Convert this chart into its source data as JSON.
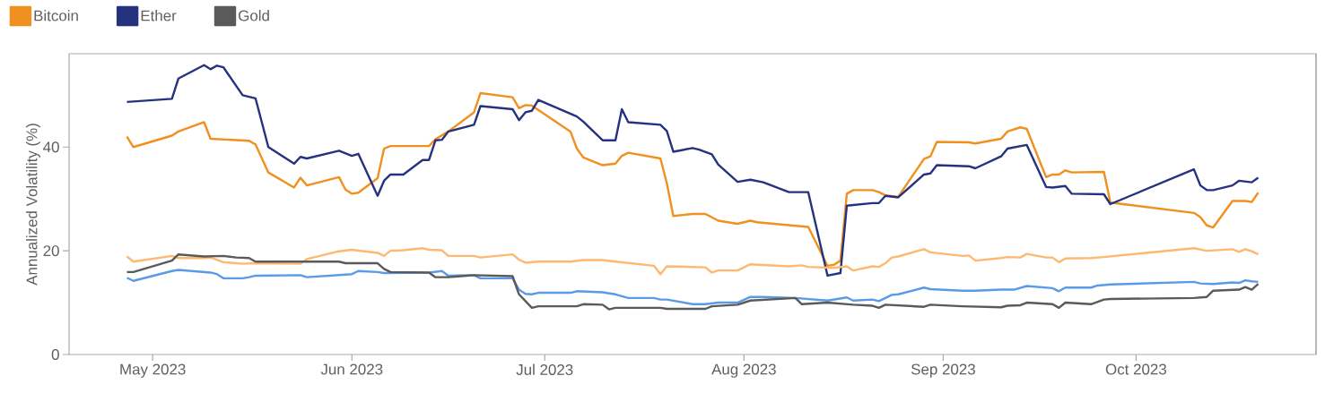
{
  "chart_data": {
    "type": "line",
    "ylabel": "Annualized Volatility (%)",
    "xlim": [
      "2023-04-18",
      "2023-10-29"
    ],
    "ylim": [
      0,
      58
    ],
    "xticks": [
      {
        "value": "2023-05-01",
        "label": "May 2023"
      },
      {
        "value": "2023-06-01",
        "label": "Jun 2023"
      },
      {
        "value": "2023-07-01",
        "label": "Jul 2023"
      },
      {
        "value": "2023-08-01",
        "label": "Aug 2023"
      },
      {
        "value": "2023-09-01",
        "label": "Sep 2023"
      },
      {
        "value": "2023-10-01",
        "label": "Oct 2023"
      }
    ],
    "yticks": [
      0,
      20,
      40
    ],
    "grid": false,
    "legend": "top left",
    "marker": "none",
    "line_style": "solid",
    "series": [
      {
        "name": "Bitcoin",
        "color": "#f0901e",
        "x": [
          "2023-04-27",
          "2023-04-28",
          "2023-05-04",
          "2023-05-05",
          "2023-05-09",
          "2023-05-10",
          "2023-05-16",
          "2023-05-17",
          "2023-05-19",
          "2023-05-23",
          "2023-05-24",
          "2023-05-25",
          "2023-05-30",
          "2023-05-31",
          "2023-06-01",
          "2023-06-02",
          "2023-06-05",
          "2023-06-06",
          "2023-06-07",
          "2023-06-13",
          "2023-06-14",
          "2023-06-16",
          "2023-06-20",
          "2023-06-21",
          "2023-06-26",
          "2023-06-27",
          "2023-06-28",
          "2023-06-29",
          "2023-07-05",
          "2023-07-06",
          "2023-07-07",
          "2023-07-10",
          "2023-07-12",
          "2023-07-13",
          "2023-07-14",
          "2023-07-19",
          "2023-07-20",
          "2023-07-21",
          "2023-07-24",
          "2023-07-26",
          "2023-07-28",
          "2023-07-31",
          "2023-08-02",
          "2023-08-03",
          "2023-08-11",
          "2023-08-14",
          "2023-08-15",
          "2023-08-16",
          "2023-08-17",
          "2023-08-18",
          "2023-08-21",
          "2023-08-22",
          "2023-08-23",
          "2023-08-25",
          "2023-08-29",
          "2023-08-30",
          "2023-08-31",
          "2023-09-05",
          "2023-09-06",
          "2023-09-10",
          "2023-09-11",
          "2023-09-13",
          "2023-09-14",
          "2023-09-17",
          "2023-09-18",
          "2023-09-19",
          "2023-09-20",
          "2023-09-21",
          "2023-09-26",
          "2023-09-27",
          "2023-10-10",
          "2023-10-11",
          "2023-10-12",
          "2023-10-13",
          "2023-10-16",
          "2023-10-18",
          "2023-10-19",
          "2023-10-20"
        ],
        "values": [
          42.0,
          40.0,
          42.2,
          43.0,
          44.8,
          41.6,
          41.2,
          40.5,
          35.1,
          32.2,
          34.1,
          32.6,
          34.2,
          31.8,
          31.0,
          31.2,
          34.0,
          39.7,
          40.2,
          40.2,
          41.5,
          43.0,
          46.7,
          50.4,
          49.6,
          47.5,
          48.1,
          48.0,
          43.0,
          39.7,
          38.0,
          36.5,
          36.8,
          38.3,
          38.9,
          37.8,
          33.0,
          26.7,
          27.1,
          27.1,
          25.8,
          25.2,
          25.8,
          25.5,
          24.6,
          17.1,
          17.3,
          18.1,
          31.0,
          31.7,
          31.7,
          31.3,
          30.7,
          30.4,
          37.7,
          38.2,
          41.0,
          40.9,
          40.7,
          41.6,
          43.0,
          43.8,
          43.5,
          34.2,
          34.7,
          34.7,
          35.5,
          35.1,
          35.2,
          29.3,
          27.3,
          26.5,
          24.9,
          24.5,
          29.6,
          29.6,
          29.4,
          31.2
        ]
      },
      {
        "name": "Ether",
        "color": "#25337f",
        "x": [
          "2023-04-27",
          "2023-05-04",
          "2023-05-05",
          "2023-05-09",
          "2023-05-10",
          "2023-05-11",
          "2023-05-12",
          "2023-05-15",
          "2023-05-17",
          "2023-05-19",
          "2023-05-23",
          "2023-05-24",
          "2023-05-25",
          "2023-05-30",
          "2023-06-01",
          "2023-06-02",
          "2023-06-05",
          "2023-06-06",
          "2023-06-07",
          "2023-06-09",
          "2023-06-12",
          "2023-06-13",
          "2023-06-14",
          "2023-06-15",
          "2023-06-16",
          "2023-06-20",
          "2023-06-21",
          "2023-06-26",
          "2023-06-27",
          "2023-06-28",
          "2023-06-29",
          "2023-06-30",
          "2023-07-06",
          "2023-07-07",
          "2023-07-10",
          "2023-07-12",
          "2023-07-13",
          "2023-07-14",
          "2023-07-19",
          "2023-07-20",
          "2023-07-21",
          "2023-07-24",
          "2023-07-25",
          "2023-07-27",
          "2023-07-28",
          "2023-07-31",
          "2023-08-02",
          "2023-08-04",
          "2023-08-08",
          "2023-08-11",
          "2023-08-14",
          "2023-08-16",
          "2023-08-17",
          "2023-08-21",
          "2023-08-22",
          "2023-08-23",
          "2023-08-25",
          "2023-08-29",
          "2023-08-30",
          "2023-08-31",
          "2023-09-05",
          "2023-09-06",
          "2023-09-10",
          "2023-09-11",
          "2023-09-14",
          "2023-09-17",
          "2023-09-18",
          "2023-09-20",
          "2023-09-21",
          "2023-09-26",
          "2023-09-27",
          "2023-10-10",
          "2023-10-11",
          "2023-10-12",
          "2023-10-13",
          "2023-10-16",
          "2023-10-17",
          "2023-10-19",
          "2023-10-20"
        ],
        "values": [
          48.7,
          49.3,
          53.2,
          55.8,
          55.0,
          55.7,
          55.4,
          50.0,
          49.4,
          40.0,
          36.8,
          38.1,
          37.8,
          39.3,
          38.3,
          38.7,
          30.6,
          33.5,
          34.7,
          34.7,
          37.5,
          37.5,
          41.3,
          41.4,
          43.0,
          44.3,
          47.9,
          47.3,
          45.2,
          46.7,
          47.0,
          49.1,
          45.9,
          44.9,
          41.3,
          41.3,
          47.3,
          44.8,
          44.3,
          43.1,
          39.1,
          39.8,
          39.5,
          38.6,
          36.6,
          33.3,
          33.7,
          33.2,
          31.3,
          31.3,
          15.2,
          15.7,
          28.7,
          29.2,
          29.2,
          30.6,
          30.3,
          34.7,
          34.9,
          36.5,
          36.3,
          35.9,
          38.2,
          39.7,
          40.4,
          32.3,
          32.2,
          32.5,
          31.0,
          30.9,
          29.0,
          35.7,
          32.6,
          31.7,
          31.7,
          32.6,
          33.5,
          33.2,
          34.1
        ]
      },
      {
        "color": "#ffb870",
        "x": [
          "2023-04-27",
          "2023-04-28",
          "2023-05-04",
          "2023-05-05",
          "2023-05-09",
          "2023-05-10",
          "2023-05-12",
          "2023-05-15",
          "2023-05-17",
          "2023-05-24",
          "2023-05-25",
          "2023-05-30",
          "2023-06-01",
          "2023-06-05",
          "2023-06-06",
          "2023-06-07",
          "2023-06-09",
          "2023-06-12",
          "2023-06-13",
          "2023-06-15",
          "2023-06-16",
          "2023-06-20",
          "2023-06-21",
          "2023-06-26",
          "2023-06-27",
          "2023-06-28",
          "2023-06-30",
          "2023-07-05",
          "2023-07-07",
          "2023-07-10",
          "2023-07-12",
          "2023-07-18",
          "2023-07-19",
          "2023-07-20",
          "2023-07-26",
          "2023-07-27",
          "2023-07-28",
          "2023-07-31",
          "2023-08-02",
          "2023-08-08",
          "2023-08-10",
          "2023-08-11",
          "2023-08-15",
          "2023-08-17",
          "2023-08-18",
          "2023-08-21",
          "2023-08-22",
          "2023-08-23",
          "2023-08-24",
          "2023-08-25",
          "2023-08-29",
          "2023-08-30",
          "2023-09-04",
          "2023-09-05",
          "2023-09-06",
          "2023-09-10",
          "2023-09-11",
          "2023-09-13",
          "2023-09-14",
          "2023-09-17",
          "2023-09-18",
          "2023-09-19",
          "2023-09-20",
          "2023-09-24",
          "2023-09-26",
          "2023-10-10",
          "2023-10-12",
          "2023-10-16",
          "2023-10-17",
          "2023-10-18",
          "2023-10-19",
          "2023-10-20"
        ],
        "values": [
          18.9,
          17.9,
          19.0,
          18.6,
          18.6,
          18.7,
          17.8,
          17.5,
          17.6,
          17.5,
          18.4,
          19.9,
          20.2,
          19.6,
          19.0,
          20.0,
          20.1,
          20.5,
          20.2,
          20.1,
          19.0,
          19.0,
          18.7,
          19.3,
          18.3,
          17.7,
          17.9,
          17.9,
          18.2,
          18.2,
          17.9,
          17.1,
          15.5,
          17.0,
          16.8,
          15.8,
          16.2,
          16.2,
          17.4,
          17.0,
          17.2,
          16.9,
          16.7,
          17.0,
          16.2,
          17.0,
          16.9,
          17.6,
          18.7,
          18.9,
          20.3,
          19.7,
          19.0,
          19.1,
          18.1,
          18.6,
          18.8,
          18.7,
          19.4,
          18.7,
          18.7,
          17.8,
          18.5,
          18.6,
          18.8,
          20.5,
          20.0,
          20.3,
          19.8,
          20.3,
          19.9,
          19.3
        ]
      },
      {
        "color": "#5b9be6",
        "x": [
          "2023-04-27",
          "2023-04-28",
          "2023-05-04",
          "2023-05-05",
          "2023-05-10",
          "2023-05-11",
          "2023-05-12",
          "2023-05-15",
          "2023-05-16",
          "2023-05-17",
          "2023-05-24",
          "2023-05-25",
          "2023-05-31",
          "2023-06-01",
          "2023-06-02",
          "2023-06-05",
          "2023-06-06",
          "2023-06-13",
          "2023-06-15",
          "2023-06-16",
          "2023-06-20",
          "2023-06-21",
          "2023-06-26",
          "2023-06-27",
          "2023-06-28",
          "2023-06-29",
          "2023-06-30",
          "2023-07-05",
          "2023-07-06",
          "2023-07-10",
          "2023-07-12",
          "2023-07-14",
          "2023-07-18",
          "2023-07-19",
          "2023-07-20",
          "2023-07-24",
          "2023-07-26",
          "2023-07-28",
          "2023-07-31",
          "2023-08-02",
          "2023-08-04",
          "2023-08-09",
          "2023-08-14",
          "2023-08-17",
          "2023-08-18",
          "2023-08-21",
          "2023-08-22",
          "2023-08-23",
          "2023-08-24",
          "2023-08-25",
          "2023-08-29",
          "2023-08-30",
          "2023-09-04",
          "2023-09-06",
          "2023-09-10",
          "2023-09-12",
          "2023-09-14",
          "2023-09-18",
          "2023-09-19",
          "2023-09-20",
          "2023-09-24",
          "2023-09-25",
          "2023-09-27",
          "2023-10-10",
          "2023-10-11",
          "2023-10-13",
          "2023-10-16",
          "2023-10-17",
          "2023-10-18",
          "2023-10-19",
          "2023-10-20"
        ],
        "values": [
          14.8,
          14.2,
          16.1,
          16.3,
          15.8,
          15.5,
          14.7,
          14.7,
          14.9,
          15.2,
          15.3,
          14.9,
          15.4,
          15.5,
          16.1,
          15.9,
          15.7,
          15.8,
          16.1,
          15.2,
          15.3,
          14.7,
          14.7,
          12.5,
          11.7,
          11.6,
          11.9,
          11.9,
          12.2,
          12.0,
          11.6,
          10.9,
          10.9,
          10.6,
          10.6,
          9.7,
          9.7,
          10.0,
          10.0,
          11.1,
          11.1,
          10.9,
          10.4,
          11.0,
          10.4,
          10.6,
          10.3,
          10.9,
          11.5,
          11.6,
          12.9,
          12.6,
          12.3,
          12.3,
          12.5,
          12.5,
          13.2,
          12.8,
          12.2,
          12.9,
          12.9,
          13.3,
          13.5,
          14.0,
          13.7,
          13.6,
          13.9,
          13.8,
          14.3,
          14.1,
          14.0
        ]
      },
      {
        "name": "Gold",
        "color": "#5a5a5a",
        "x": [
          "2023-04-27",
          "2023-04-28",
          "2023-05-04",
          "2023-05-05",
          "2023-05-09",
          "2023-05-12",
          "2023-05-14",
          "2023-05-16",
          "2023-05-17",
          "2023-05-30",
          "2023-05-31",
          "2023-06-05",
          "2023-06-06",
          "2023-06-07",
          "2023-06-13",
          "2023-06-14",
          "2023-06-16",
          "2023-06-20",
          "2023-06-26",
          "2023-06-27",
          "2023-06-29",
          "2023-06-30",
          "2023-07-06",
          "2023-07-07",
          "2023-07-10",
          "2023-07-11",
          "2023-07-12",
          "2023-07-19",
          "2023-07-20",
          "2023-07-26",
          "2023-07-27",
          "2023-07-31",
          "2023-08-02",
          "2023-08-09",
          "2023-08-10",
          "2023-08-14",
          "2023-08-18",
          "2023-08-21",
          "2023-08-22",
          "2023-08-23",
          "2023-08-29",
          "2023-08-30",
          "2023-09-04",
          "2023-09-10",
          "2023-09-11",
          "2023-09-13",
          "2023-09-14",
          "2023-09-18",
          "2023-09-19",
          "2023-09-20",
          "2023-09-24",
          "2023-09-26",
          "2023-09-27",
          "2023-10-10",
          "2023-10-12",
          "2023-10-13",
          "2023-10-17",
          "2023-10-18",
          "2023-10-19",
          "2023-10-20"
        ],
        "values": [
          15.9,
          15.9,
          18.1,
          19.3,
          18.9,
          19.0,
          18.7,
          18.6,
          17.9,
          17.9,
          17.6,
          17.6,
          16.5,
          15.9,
          15.8,
          14.9,
          14.9,
          15.3,
          15.1,
          11.6,
          9.0,
          9.3,
          9.3,
          9.7,
          9.6,
          8.7,
          9.0,
          9.0,
          8.8,
          8.8,
          9.3,
          9.6,
          10.4,
          10.9,
          9.7,
          10.0,
          9.6,
          9.4,
          9.0,
          9.6,
          9.2,
          9.6,
          9.3,
          9.1,
          9.4,
          9.5,
          10.0,
          9.7,
          9.0,
          10.0,
          9.7,
          10.6,
          10.7,
          10.9,
          11.1,
          12.3,
          12.5,
          13.0,
          12.5,
          13.6
        ]
      }
    ]
  }
}
